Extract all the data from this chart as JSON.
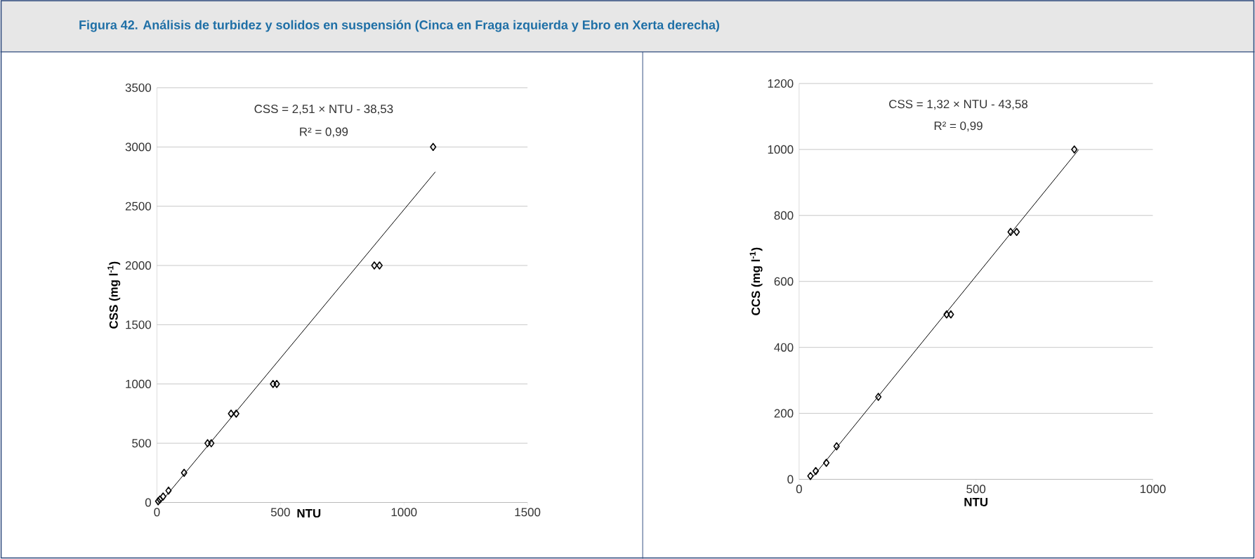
{
  "chart_data": [
    {
      "type": "scatter",
      "title": "Figura 42.   Análisis de turbidez y solidos en suspensión (Cinca en Fraga izquierda y Ebro en Xerta derecha)",
      "xlabel": "NTU",
      "ylabel": "CSS (mg l$^{-1}$)",
      "xlim": [
        0,
        1500
      ],
      "xticks": [
        0,
        500,
        1000,
        1500
      ],
      "ylim": [
        0,
        3500
      ],
      "yticks": [
        0,
        500,
        1000,
        1500,
        2000,
        2500,
        3000,
        3500
      ],
      "grid": "y",
      "marker": "diamond",
      "annotations": [
        "CSS = 2,51 × NTU - 38,53",
        "R² = 0,99"
      ],
      "series": [
        {
          "color": "#000000",
          "x": [
            5,
            12,
            25,
            47,
            110,
            205,
            220,
            300,
            321,
            470,
            485,
            880,
            901,
            1118
          ],
          "values": [
            10,
            25,
            50,
            100,
            250,
            500,
            500,
            750,
            750,
            1000,
            1000,
            2000,
            2000,
            3000
          ]
        },
        {
          "type": "line",
          "marker": "none",
          "line_style": "solid",
          "color": "#000000",
          "x": [
            15,
            1127
          ],
          "values": [
            0,
            2790
          ]
        }
      ]
    },
    {
      "type": "scatter",
      "xlabel": "NTU",
      "ylabel": "CCS (mg l$^{-1}$)",
      "xlim": [
        0,
        1000
      ],
      "xticks": [
        0,
        500,
        1000
      ],
      "ylim": [
        0,
        1200
      ],
      "yticks": [
        0,
        200,
        400,
        600,
        800,
        1000,
        1200
      ],
      "grid": "y",
      "marker": "diamond",
      "annotations": [
        "CSS = 1,32 × NTU - 43,58",
        "R² = 0,99"
      ],
      "series": [
        {
          "color": "#000000",
          "x": [
            32,
            47,
            77,
            106,
            224,
            417,
            429,
            598,
            615,
            778
          ],
          "values": [
            10,
            25,
            50,
            100,
            250,
            500,
            500,
            750,
            750,
            1000
          ]
        },
        {
          "type": "line",
          "marker": "none",
          "line_style": "solid",
          "color": "#000000",
          "x": [
            40,
            790
          ],
          "values": [
            9,
            999
          ]
        }
      ]
    }
  ]
}
